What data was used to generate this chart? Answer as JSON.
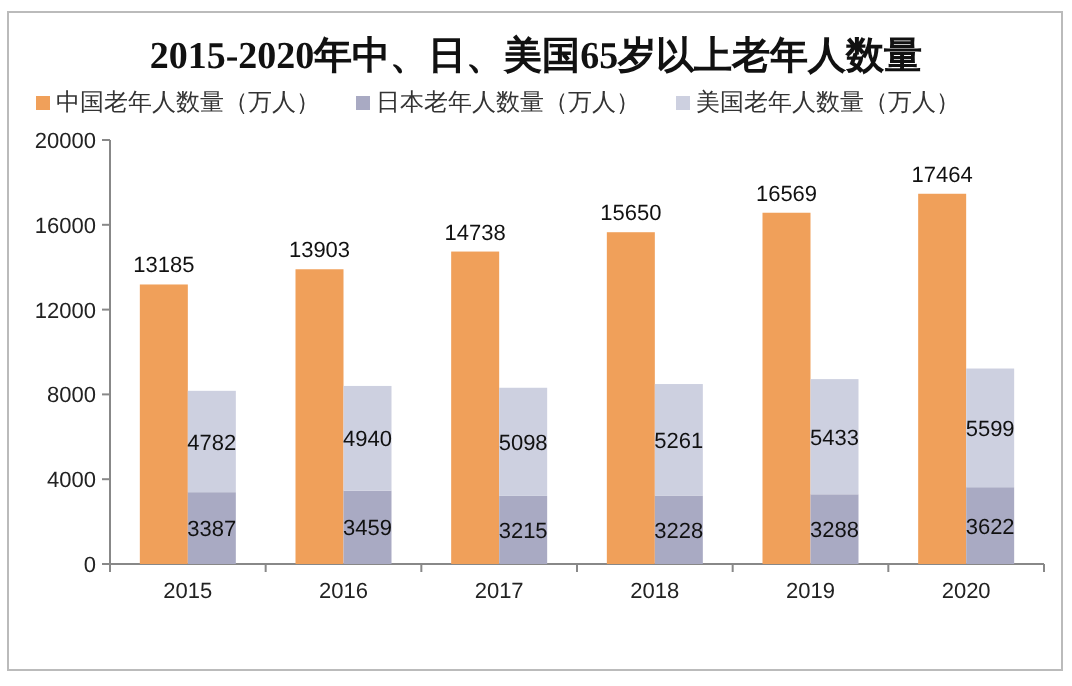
{
  "chart_data": [
    {
      "type": "bar",
      "title": "2015-2020年中、日、美国65岁以上老年人数量",
      "data_labels": true,
      "legend": "top",
      "grid": false,
      "categories": [
        "2015",
        "2016",
        "2017",
        "2018",
        "2019",
        "2020"
      ],
      "ylim": [
        0,
        20000
      ],
      "yticks": [
        0,
        4000,
        8000,
        12000,
        16000,
        20000
      ],
      "series": [
        {
          "name": "中国老年人数量（万人）",
          "color": "#f0a05a",
          "values": [
            13185,
            13903,
            14738,
            15650,
            16569,
            17464
          ]
        }
      ]
    },
    {
      "type": "bar",
      "stacked": true,
      "data_labels": true,
      "legend": "top",
      "tick_labels": false,
      "categories": [
        "2015",
        "2016",
        "2017",
        "2018",
        "2019",
        "2020"
      ],
      "ylim": [
        0,
        20000
      ],
      "series": [
        {
          "name": "日本老年人数量（万人）",
          "color": "#a9aac3",
          "values": [
            3387,
            3459,
            3215,
            3228,
            3288,
            3622
          ]
        },
        {
          "name": "美国老年人数量（万人）",
          "color": "#cdd0e0",
          "values": [
            4782,
            4940,
            5098,
            5261,
            5433,
            5599
          ]
        }
      ]
    }
  ]
}
